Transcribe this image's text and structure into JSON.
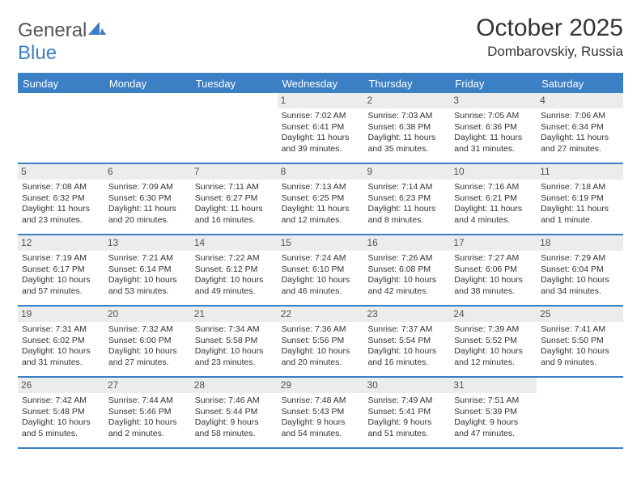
{
  "brand": {
    "part1": "General",
    "part2": "Blue"
  },
  "title": "October 2025",
  "location": "Dombarovskiy, Russia",
  "colors": {
    "accent": "#3b7fc4",
    "header_bg": "#3b7fc4",
    "header_text": "#ffffff",
    "daynum_bg": "#ececec",
    "daynum_text": "#555555",
    "body_text": "#333333",
    "page_bg": "#ffffff"
  },
  "day_names": [
    "Sunday",
    "Monday",
    "Tuesday",
    "Wednesday",
    "Thursday",
    "Friday",
    "Saturday"
  ],
  "weeks": [
    [
      {
        "day": null
      },
      {
        "day": null
      },
      {
        "day": null
      },
      {
        "day": 1,
        "sunrise": "7:02 AM",
        "sunset": "6:41 PM",
        "daylight": "11 hours and 39 minutes."
      },
      {
        "day": 2,
        "sunrise": "7:03 AM",
        "sunset": "6:38 PM",
        "daylight": "11 hours and 35 minutes."
      },
      {
        "day": 3,
        "sunrise": "7:05 AM",
        "sunset": "6:36 PM",
        "daylight": "11 hours and 31 minutes."
      },
      {
        "day": 4,
        "sunrise": "7:06 AM",
        "sunset": "6:34 PM",
        "daylight": "11 hours and 27 minutes."
      }
    ],
    [
      {
        "day": 5,
        "sunrise": "7:08 AM",
        "sunset": "6:32 PM",
        "daylight": "11 hours and 23 minutes."
      },
      {
        "day": 6,
        "sunrise": "7:09 AM",
        "sunset": "6:30 PM",
        "daylight": "11 hours and 20 minutes."
      },
      {
        "day": 7,
        "sunrise": "7:11 AM",
        "sunset": "6:27 PM",
        "daylight": "11 hours and 16 minutes."
      },
      {
        "day": 8,
        "sunrise": "7:13 AM",
        "sunset": "6:25 PM",
        "daylight": "11 hours and 12 minutes."
      },
      {
        "day": 9,
        "sunrise": "7:14 AM",
        "sunset": "6:23 PM",
        "daylight": "11 hours and 8 minutes."
      },
      {
        "day": 10,
        "sunrise": "7:16 AM",
        "sunset": "6:21 PM",
        "daylight": "11 hours and 4 minutes."
      },
      {
        "day": 11,
        "sunrise": "7:18 AM",
        "sunset": "6:19 PM",
        "daylight": "11 hours and 1 minute."
      }
    ],
    [
      {
        "day": 12,
        "sunrise": "7:19 AM",
        "sunset": "6:17 PM",
        "daylight": "10 hours and 57 minutes."
      },
      {
        "day": 13,
        "sunrise": "7:21 AM",
        "sunset": "6:14 PM",
        "daylight": "10 hours and 53 minutes."
      },
      {
        "day": 14,
        "sunrise": "7:22 AM",
        "sunset": "6:12 PM",
        "daylight": "10 hours and 49 minutes."
      },
      {
        "day": 15,
        "sunrise": "7:24 AM",
        "sunset": "6:10 PM",
        "daylight": "10 hours and 46 minutes."
      },
      {
        "day": 16,
        "sunrise": "7:26 AM",
        "sunset": "6:08 PM",
        "daylight": "10 hours and 42 minutes."
      },
      {
        "day": 17,
        "sunrise": "7:27 AM",
        "sunset": "6:06 PM",
        "daylight": "10 hours and 38 minutes."
      },
      {
        "day": 18,
        "sunrise": "7:29 AM",
        "sunset": "6:04 PM",
        "daylight": "10 hours and 34 minutes."
      }
    ],
    [
      {
        "day": 19,
        "sunrise": "7:31 AM",
        "sunset": "6:02 PM",
        "daylight": "10 hours and 31 minutes."
      },
      {
        "day": 20,
        "sunrise": "7:32 AM",
        "sunset": "6:00 PM",
        "daylight": "10 hours and 27 minutes."
      },
      {
        "day": 21,
        "sunrise": "7:34 AM",
        "sunset": "5:58 PM",
        "daylight": "10 hours and 23 minutes."
      },
      {
        "day": 22,
        "sunrise": "7:36 AM",
        "sunset": "5:56 PM",
        "daylight": "10 hours and 20 minutes."
      },
      {
        "day": 23,
        "sunrise": "7:37 AM",
        "sunset": "5:54 PM",
        "daylight": "10 hours and 16 minutes."
      },
      {
        "day": 24,
        "sunrise": "7:39 AM",
        "sunset": "5:52 PM",
        "daylight": "10 hours and 12 minutes."
      },
      {
        "day": 25,
        "sunrise": "7:41 AM",
        "sunset": "5:50 PM",
        "daylight": "10 hours and 9 minutes."
      }
    ],
    [
      {
        "day": 26,
        "sunrise": "7:42 AM",
        "sunset": "5:48 PM",
        "daylight": "10 hours and 5 minutes."
      },
      {
        "day": 27,
        "sunrise": "7:44 AM",
        "sunset": "5:46 PM",
        "daylight": "10 hours and 2 minutes."
      },
      {
        "day": 28,
        "sunrise": "7:46 AM",
        "sunset": "5:44 PM",
        "daylight": "9 hours and 58 minutes."
      },
      {
        "day": 29,
        "sunrise": "7:48 AM",
        "sunset": "5:43 PM",
        "daylight": "9 hours and 54 minutes."
      },
      {
        "day": 30,
        "sunrise": "7:49 AM",
        "sunset": "5:41 PM",
        "daylight": "9 hours and 51 minutes."
      },
      {
        "day": 31,
        "sunrise": "7:51 AM",
        "sunset": "5:39 PM",
        "daylight": "9 hours and 47 minutes."
      },
      {
        "day": null
      }
    ]
  ],
  "labels": {
    "sunrise_prefix": "Sunrise: ",
    "sunset_prefix": "Sunset: ",
    "daylight_prefix": "Daylight: "
  }
}
